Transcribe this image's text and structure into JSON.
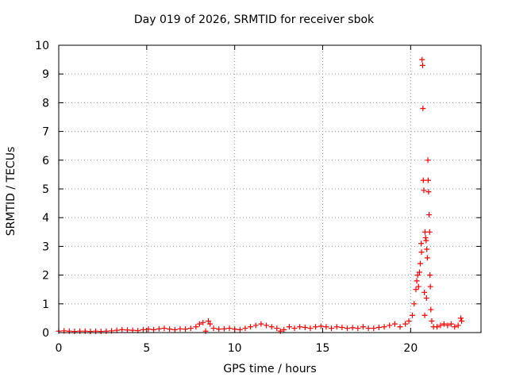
{
  "chart_data": {
    "type": "scatter",
    "title": "Day 019 of 2026, SRMTID for receiver sbok",
    "xlabel": "GPS time / hours",
    "ylabel": "SRMTID / TECUs",
    "xlim": [
      0,
      24
    ],
    "ylim": [
      0,
      10
    ],
    "xticks": [
      0,
      5,
      10,
      15,
      20
    ],
    "yticks": [
      0,
      1,
      2,
      3,
      4,
      5,
      6,
      7,
      8,
      9,
      10
    ],
    "grid": true,
    "marker": "+",
    "color": "#ff0000",
    "series": [
      {
        "x": [
          0.0,
          0.3,
          0.6,
          0.9,
          1.2,
          1.5,
          1.8,
          2.1,
          2.4,
          2.7,
          3.0,
          3.3,
          3.6,
          3.9,
          4.2,
          4.5,
          4.8,
          5.1,
          5.4,
          5.7,
          6.0,
          6.3,
          6.6,
          6.9,
          7.2,
          7.5,
          7.8,
          8.0,
          8.2,
          8.35,
          8.5,
          8.6,
          8.8,
          9.1,
          9.4,
          9.7,
          10.0,
          10.3,
          10.6,
          10.9,
          11.2,
          11.5,
          11.8,
          12.1,
          12.4,
          12.6,
          12.8,
          13.1,
          13.4,
          13.7,
          14.0,
          14.3,
          14.6,
          14.9,
          15.2,
          15.5,
          15.8,
          16.1,
          16.4,
          16.7,
          17.0,
          17.3,
          17.6,
          17.9,
          18.2,
          18.5,
          18.8,
          19.1,
          19.4,
          19.7,
          19.9,
          20.1,
          20.2,
          20.3,
          20.35,
          20.4,
          20.45,
          20.5,
          20.55,
          20.6,
          20.62,
          20.65,
          20.68,
          20.7,
          20.72,
          20.75,
          20.78,
          20.8,
          20.82,
          20.85,
          20.88,
          20.9,
          20.92,
          20.95,
          20.98,
          21.0,
          21.02,
          21.05,
          21.08,
          21.1,
          21.12,
          21.15,
          21.2,
          21.3,
          21.5,
          21.7,
          21.9,
          22.1,
          22.3,
          22.5,
          22.7,
          22.85,
          22.9
        ],
        "y": [
          0.05,
          0.06,
          0.05,
          0.04,
          0.05,
          0.05,
          0.04,
          0.05,
          0.04,
          0.05,
          0.06,
          0.08,
          0.1,
          0.09,
          0.08,
          0.07,
          0.1,
          0.12,
          0.1,
          0.13,
          0.15,
          0.12,
          0.1,
          0.13,
          0.12,
          0.15,
          0.2,
          0.3,
          0.35,
          0.05,
          0.4,
          0.3,
          0.15,
          0.12,
          0.13,
          0.15,
          0.12,
          0.1,
          0.15,
          0.2,
          0.25,
          0.3,
          0.25,
          0.2,
          0.15,
          0.05,
          0.1,
          0.2,
          0.15,
          0.2,
          0.18,
          0.15,
          0.2,
          0.22,
          0.2,
          0.15,
          0.2,
          0.18,
          0.15,
          0.17,
          0.15,
          0.2,
          0.15,
          0.15,
          0.18,
          0.2,
          0.25,
          0.3,
          0.2,
          0.3,
          0.4,
          0.6,
          1.0,
          1.5,
          1.8,
          2.0,
          1.6,
          2.1,
          2.4,
          3.1,
          2.8,
          9.5,
          9.3,
          7.8,
          5.3,
          4.95,
          1.4,
          0.6,
          3.5,
          3.3,
          3.2,
          1.2,
          2.9,
          2.6,
          6.0,
          5.3,
          4.9,
          4.1,
          3.5,
          2.0,
          1.6,
          0.8,
          0.4,
          0.2,
          0.2,
          0.25,
          0.3,
          0.25,
          0.3,
          0.2,
          0.25,
          0.5,
          0.4
        ]
      }
    ]
  }
}
